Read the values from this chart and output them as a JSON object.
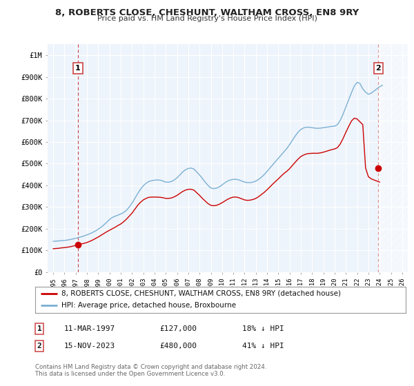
{
  "title": "8, ROBERTS CLOSE, CHESHUNT, WALTHAM CROSS, EN8 9RY",
  "subtitle": "Price paid vs. HM Land Registry's House Price Index (HPI)",
  "legend_label_red": "8, ROBERTS CLOSE, CHESHUNT, WALTHAM CROSS, EN8 9RY (detached house)",
  "legend_label_blue": "HPI: Average price, detached house, Broxbourne",
  "annotation1_label": "1",
  "annotation1_date": "11-MAR-1997",
  "annotation1_price": "£127,000",
  "annotation1_hpi": "18% ↓ HPI",
  "annotation2_label": "2",
  "annotation2_date": "15-NOV-2023",
  "annotation2_price": "£480,000",
  "annotation2_hpi": "41% ↓ HPI",
  "footer": "Contains HM Land Registry data © Crown copyright and database right 2024.\nThis data is licensed under the Open Government Licence v3.0.",
  "bg_color": "#ffffff",
  "plot_bg_color": "#eef4fb",
  "red_color": "#cc0000",
  "blue_color": "#7ab0d4",
  "dashed_color": "#cc4444",
  "sale1_year": 1997.19,
  "sale1_value": 127000,
  "sale2_year": 2023.88,
  "sale2_value": 480000,
  "ylim_max": 1050000,
  "xmin": 1994.5,
  "xmax": 2026.5,
  "yticks": [
    0,
    100000,
    200000,
    300000,
    400000,
    500000,
    600000,
    700000,
    800000,
    900000,
    1000000
  ],
  "ytick_labels": [
    "£0",
    "£100K",
    "£200K",
    "£300K",
    "£400K",
    "£500K",
    "£600K",
    "£700K",
    "£800K",
    "£900K",
    "£1M"
  ],
  "xticks": [
    1995,
    1996,
    1997,
    1998,
    1999,
    2000,
    2001,
    2002,
    2003,
    2004,
    2005,
    2006,
    2007,
    2008,
    2009,
    2010,
    2011,
    2012,
    2013,
    2014,
    2015,
    2016,
    2017,
    2018,
    2019,
    2020,
    2021,
    2022,
    2023,
    2024,
    2025,
    2026
  ],
  "hpi_years": [
    1995.0,
    1995.25,
    1995.5,
    1995.75,
    1996.0,
    1996.25,
    1996.5,
    1996.75,
    1997.0,
    1997.25,
    1997.5,
    1997.75,
    1998.0,
    1998.25,
    1998.5,
    1998.75,
    1999.0,
    1999.25,
    1999.5,
    1999.75,
    2000.0,
    2000.25,
    2000.5,
    2000.75,
    2001.0,
    2001.25,
    2001.5,
    2001.75,
    2002.0,
    2002.25,
    2002.5,
    2002.75,
    2003.0,
    2003.25,
    2003.5,
    2003.75,
    2004.0,
    2004.25,
    2004.5,
    2004.75,
    2005.0,
    2005.25,
    2005.5,
    2005.75,
    2006.0,
    2006.25,
    2006.5,
    2006.75,
    2007.0,
    2007.25,
    2007.5,
    2007.75,
    2008.0,
    2008.25,
    2008.5,
    2008.75,
    2009.0,
    2009.25,
    2009.5,
    2009.75,
    2010.0,
    2010.25,
    2010.5,
    2010.75,
    2011.0,
    2011.25,
    2011.5,
    2011.75,
    2012.0,
    2012.25,
    2012.5,
    2012.75,
    2013.0,
    2013.25,
    2013.5,
    2013.75,
    2014.0,
    2014.25,
    2014.5,
    2014.75,
    2015.0,
    2015.25,
    2015.5,
    2015.75,
    2016.0,
    2016.25,
    2016.5,
    2016.75,
    2017.0,
    2017.25,
    2017.5,
    2017.75,
    2018.0,
    2018.25,
    2018.5,
    2018.75,
    2019.0,
    2019.25,
    2019.5,
    2019.75,
    2020.0,
    2020.25,
    2020.5,
    2020.75,
    2021.0,
    2021.25,
    2021.5,
    2021.75,
    2022.0,
    2022.25,
    2022.5,
    2022.75,
    2023.0,
    2023.25,
    2023.5,
    2023.75,
    2024.0,
    2024.25
  ],
  "hpi_values": [
    142000,
    143000,
    144000,
    145000,
    146000,
    148000,
    150000,
    153000,
    156000,
    160000,
    163000,
    167000,
    172000,
    177000,
    183000,
    190000,
    198000,
    207000,
    218000,
    230000,
    243000,
    252000,
    258000,
    263000,
    268000,
    275000,
    285000,
    300000,
    318000,
    340000,
    362000,
    382000,
    398000,
    410000,
    418000,
    422000,
    424000,
    425000,
    424000,
    420000,
    415000,
    415000,
    418000,
    425000,
    435000,
    448000,
    462000,
    472000,
    478000,
    480000,
    475000,
    462000,
    448000,
    432000,
    415000,
    400000,
    388000,
    385000,
    387000,
    393000,
    402000,
    412000,
    420000,
    425000,
    428000,
    428000,
    425000,
    420000,
    415000,
    413000,
    413000,
    415000,
    420000,
    428000,
    438000,
    450000,
    465000,
    480000,
    495000,
    510000,
    525000,
    540000,
    555000,
    570000,
    588000,
    608000,
    628000,
    645000,
    658000,
    665000,
    668000,
    668000,
    666000,
    664000,
    663000,
    664000,
    666000,
    668000,
    670000,
    672000,
    673000,
    680000,
    700000,
    728000,
    762000,
    795000,
    828000,
    858000,
    875000,
    870000,
    845000,
    830000,
    820000,
    825000,
    835000,
    845000,
    855000,
    862000
  ],
  "red_years": [
    1995.0,
    1995.25,
    1995.5,
    1995.75,
    1996.0,
    1996.25,
    1996.5,
    1996.75,
    1997.0,
    1997.25,
    1997.5,
    1997.75,
    1998.0,
    1998.25,
    1998.5,
    1998.75,
    1999.0,
    1999.25,
    1999.5,
    1999.75,
    2000.0,
    2000.25,
    2000.5,
    2000.75,
    2001.0,
    2001.25,
    2001.5,
    2001.75,
    2002.0,
    2002.25,
    2002.5,
    2002.75,
    2003.0,
    2003.25,
    2003.5,
    2003.75,
    2004.0,
    2004.25,
    2004.5,
    2004.75,
    2005.0,
    2005.25,
    2005.5,
    2005.75,
    2006.0,
    2006.25,
    2006.5,
    2006.75,
    2007.0,
    2007.25,
    2007.5,
    2007.75,
    2008.0,
    2008.25,
    2008.5,
    2008.75,
    2009.0,
    2009.25,
    2009.5,
    2009.75,
    2010.0,
    2010.25,
    2010.5,
    2010.75,
    2011.0,
    2011.25,
    2011.5,
    2011.75,
    2012.0,
    2012.25,
    2012.5,
    2012.75,
    2013.0,
    2013.25,
    2013.5,
    2013.75,
    2014.0,
    2014.25,
    2014.5,
    2014.75,
    2015.0,
    2015.25,
    2015.5,
    2015.75,
    2016.0,
    2016.25,
    2016.5,
    2016.75,
    2017.0,
    2017.25,
    2017.5,
    2017.75,
    2018.0,
    2018.25,
    2018.5,
    2018.75,
    2019.0,
    2019.25,
    2019.5,
    2019.75,
    2020.0,
    2020.25,
    2020.5,
    2020.75,
    2021.0,
    2021.25,
    2021.5,
    2021.75,
    2022.0,
    2022.25,
    2022.5,
    2022.75,
    2023.0,
    2023.25,
    2023.5,
    2023.75,
    2024.0
  ],
  "red_values": [
    108000,
    109000,
    110000,
    112000,
    113000,
    115000,
    117000,
    120000,
    123000,
    127000,
    130000,
    133000,
    137000,
    142000,
    148000,
    155000,
    162000,
    170000,
    178000,
    186000,
    193000,
    200000,
    207000,
    215000,
    222000,
    232000,
    244000,
    258000,
    272000,
    290000,
    308000,
    322000,
    333000,
    340000,
    345000,
    346000,
    346000,
    346000,
    345000,
    343000,
    340000,
    340000,
    342000,
    347000,
    354000,
    363000,
    372000,
    378000,
    382000,
    382000,
    378000,
    366000,
    354000,
    340000,
    328000,
    316000,
    308000,
    306000,
    308000,
    313000,
    320000,
    328000,
    336000,
    342000,
    346000,
    346000,
    343000,
    338000,
    333000,
    331000,
    332000,
    335000,
    340000,
    348000,
    358000,
    368000,
    380000,
    393000,
    406000,
    418000,
    430000,
    443000,
    455000,
    465000,
    477000,
    492000,
    507000,
    521000,
    533000,
    540000,
    545000,
    547000,
    548000,
    548000,
    548000,
    550000,
    553000,
    557000,
    561000,
    565000,
    568000,
    574000,
    591000,
    616000,
    645000,
    672000,
    697000,
    710000,
    706000,
    693000,
    680000,
    480000,
    440000,
    430000,
    425000,
    420000,
    415000
  ]
}
